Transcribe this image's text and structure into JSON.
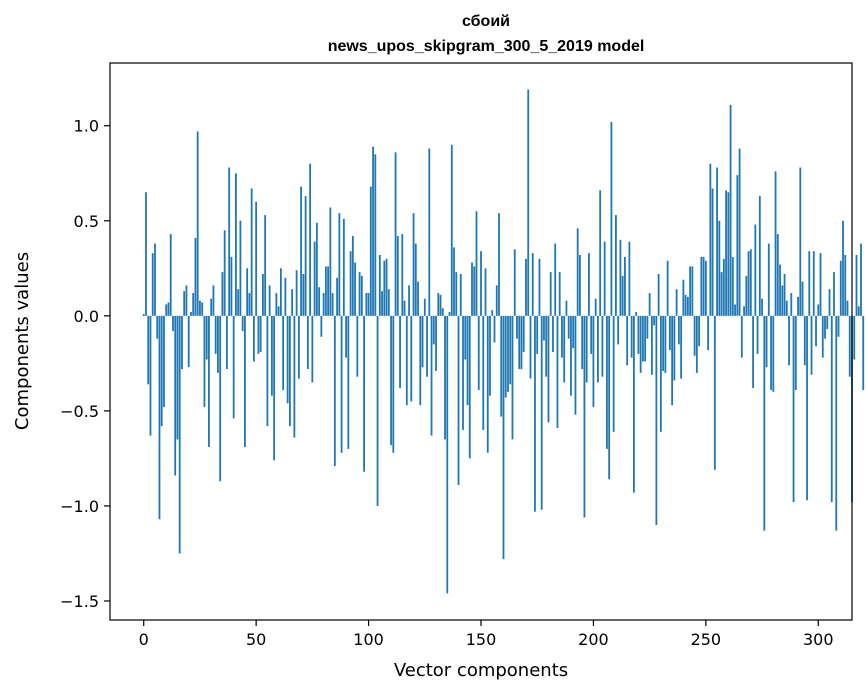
{
  "chart_data": {
    "type": "bar",
    "title": "сбоий",
    "subtitle": "news_upos_skipgram_300_5_2019 model",
    "xlabel": "Vector components",
    "ylabel": "Components values",
    "xlim": [
      -15,
      315
    ],
    "ylim": [
      -1.6,
      1.33
    ],
    "x_ticks": [
      0,
      50,
      100,
      150,
      200,
      250,
      300
    ],
    "x_tick_labels": [
      "0",
      "50",
      "100",
      "150",
      "200",
      "250",
      "300"
    ],
    "y_ticks": [
      -1.5,
      -1.0,
      -0.5,
      0.0,
      0.5,
      1.0
    ],
    "y_tick_labels": [
      "−1.5",
      "−1.0",
      "−0.5",
      "0.0",
      "0.5",
      "1.0"
    ],
    "grid": false,
    "bar_color": "#1f77b4",
    "values": [
      0.01,
      0.65,
      -0.36,
      -0.63,
      0.33,
      0.38,
      -0.12,
      -1.07,
      -0.58,
      -0.48,
      0.06,
      0.07,
      0.43,
      -0.08,
      -0.84,
      -0.65,
      -1.25,
      -0.28,
      0.13,
      0.16,
      -0.27,
      0.02,
      0.12,
      0.41,
      0.97,
      0.08,
      0.07,
      -0.48,
      -0.23,
      -0.69,
      0.09,
      0.16,
      -0.2,
      -0.3,
      -0.87,
      0.23,
      0.45,
      -0.28,
      0.78,
      0.31,
      -0.54,
      0.75,
      0.14,
      0.5,
      -0.08,
      -0.69,
      0.25,
      0.12,
      0.67,
      -0.24,
      0.6,
      -0.2,
      -0.19,
      0.22,
      0.53,
      -0.58,
      0.16,
      -0.42,
      -0.76,
      0.12,
      0.05,
      0.25,
      -0.39,
      0.2,
      -0.46,
      -0.58,
      0.14,
      -0.64,
      0.24,
      -0.33,
      0.68,
      0.22,
      0.63,
      -0.28,
      0.8,
      -0.35,
      0.39,
      0.49,
      0.15,
      -0.11,
      0.12,
      0.26,
      0.26,
      0.57,
      0.12,
      -0.79,
      0.2,
      0.54,
      -0.72,
      0.51,
      -0.22,
      -0.7,
      0.34,
      0.42,
      0.28,
      -0.32,
      0.23,
      0.21,
      -0.82,
      0.12,
      0.12,
      0.68,
      0.89,
      0.85,
      -1.0,
      0.32,
      0.13,
      0.29,
      0.3,
      0.14,
      -0.68,
      -0.72,
      0.86,
      0.42,
      -0.38,
      0.43,
      0.08,
      -0.47,
      0.16,
      -0.45,
      0.54,
      0.38,
      0.18,
      -0.47,
      -0.27,
      0.09,
      -0.32,
      0.88,
      -0.63,
      -0.15,
      -0.29,
      0.12,
      0.11,
      0.04,
      -0.65,
      -1.46,
      0.02,
      0.9,
      0.36,
      0.23,
      -0.89,
      0.22,
      -0.6,
      -0.23,
      -0.47,
      -0.75,
      0.28,
      0.26,
      0.55,
      -0.39,
      0.34,
      -0.6,
      0.25,
      -0.72,
      -0.42,
      0.03,
      -0.14,
      0.16,
      0.54,
      -0.53,
      -1.28,
      -0.43,
      -0.4,
      -0.36,
      -0.65,
      0.35,
      -0.12,
      -0.28,
      -0.28,
      -0.19,
      0.3,
      1.19,
      -0.33,
      0.33,
      -1.03,
      -0.2,
      0.3,
      -1.02,
      -0.13,
      -0.32,
      -0.56,
      0.23,
      -0.19,
      0.38,
      -0.59,
      0.23,
      -0.22,
      -0.35,
      0.08,
      -0.12,
      -0.42,
      -0.17,
      -0.52,
      0.46,
      0.32,
      -0.28,
      -1.06,
      -0.35,
      0.33,
      -0.2,
      -0.48,
      0.09,
      -0.35,
      0.66,
      -0.32,
      0.39,
      -0.7,
      -0.86,
      1.02,
      -0.61,
      0.53,
      -0.15,
      0.4,
      0.21,
      0.31,
      -0.26,
      0.39,
      -0.22,
      -0.93,
      0.02,
      -0.2,
      -0.3,
      -0.24,
      -0.24,
      -0.12,
      0.12,
      -0.31,
      -0.05,
      -1.1,
      0.22,
      -0.61,
      -0.29,
      -0.3,
      0.29,
      -0.18,
      -0.47,
      -0.34,
      0.14,
      -0.15,
      -0.33,
      0.19,
      0.11,
      0.1,
      0.26,
      0.26,
      -0.21,
      -0.3,
      -0.16,
      0.31,
      0.31,
      0.29,
      -0.18,
      0.8,
      0.67,
      -0.81,
      0.78,
      0.5,
      0.23,
      0.3,
      0.66,
      0.65,
      1.11,
      0.31,
      0.06,
      0.74,
      0.88,
      -0.22,
      0.05,
      0.21,
      0.34,
      0.35,
      -0.38,
      0.48,
      -0.2,
      0.63,
      0.09,
      -1.13,
      -0.27,
      0.38,
      -0.39,
      -0.4,
      0.76,
      0.43,
      0.27,
      0.16,
      0.22,
      0.08,
      -0.26,
      0.12,
      -0.98,
      -0.39,
      0.1,
      0.78,
      0.18,
      -0.26,
      -0.97,
      0.34,
      -0.31,
      0.34,
      -0.16,
      0.06,
      0.33,
      -0.22,
      -0.12,
      -0.07,
      0.14,
      -0.98,
      0.23,
      -1.13,
      -0.11,
      0.29,
      0.5,
      0.32,
      0.08,
      -0.32,
      -0.98,
      -0.23,
      0.32,
      0.05,
      0.38,
      -0.39
    ]
  }
}
